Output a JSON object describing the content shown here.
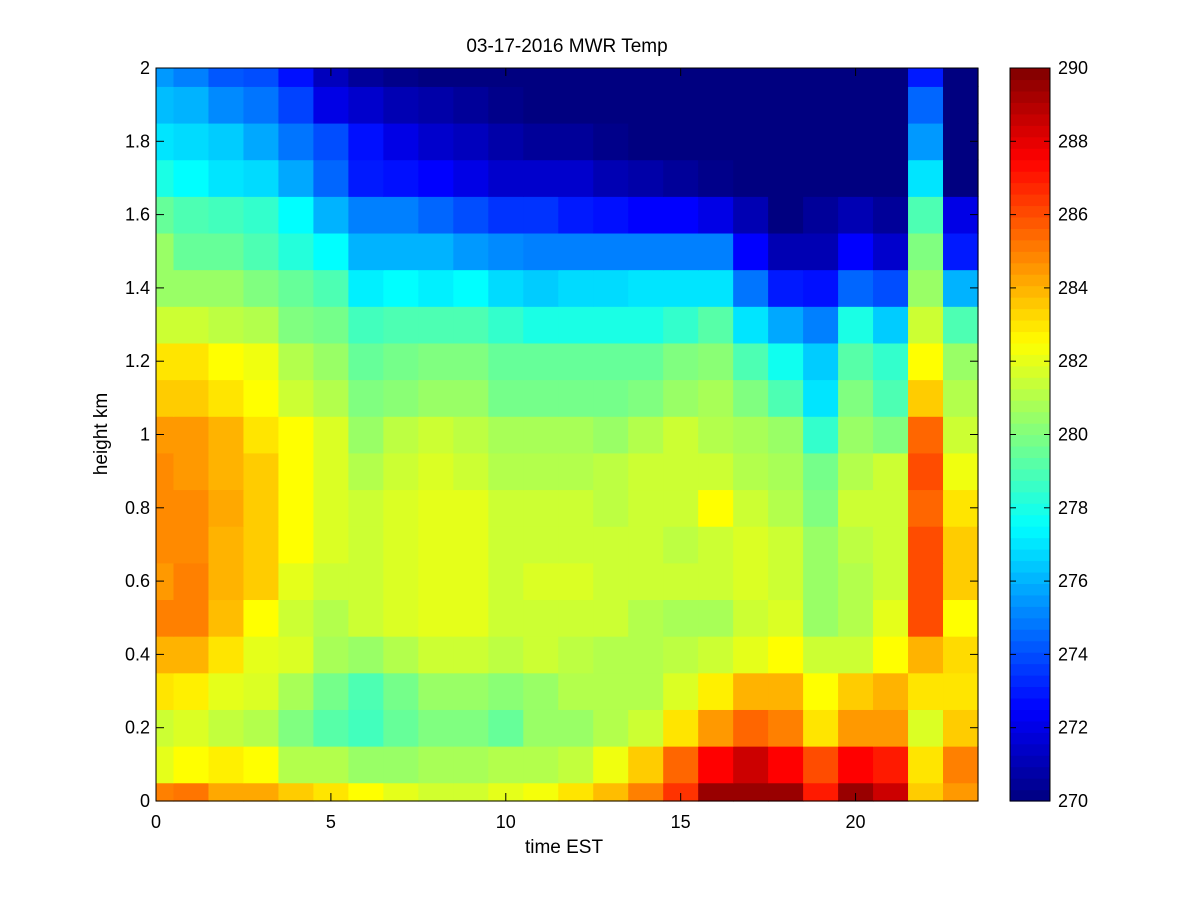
{
  "chart_data": {
    "type": "heatmap",
    "title": "03-17-2016 MWR Temp",
    "xlabel": "time EST",
    "ylabel": "height km",
    "xlim": [
      0,
      23.5
    ],
    "ylim": [
      0,
      2
    ],
    "clim": [
      270,
      290
    ],
    "colormap": "jet",
    "x_ticks": [
      0,
      5,
      10,
      15,
      20
    ],
    "y_ticks": [
      0,
      0.2,
      0.4,
      0.6,
      0.8,
      1,
      1.2,
      1.4,
      1.6,
      1.8,
      2
    ],
    "colorbar_ticks": [
      270,
      272,
      274,
      276,
      278,
      280,
      282,
      284,
      286,
      288,
      290
    ],
    "x_edges": [
      0,
      0.5,
      1.5,
      2.5,
      3.5,
      4.5,
      5.5,
      6.5,
      7.5,
      8.5,
      9.5,
      10.5,
      11.5,
      12.5,
      13.5,
      14.5,
      15.5,
      16.5,
      17.5,
      18.5,
      19.5,
      20.5,
      21.5,
      22.5,
      23.5
    ],
    "y_edges": [
      0,
      0.05,
      0.15,
      0.25,
      0.35,
      0.45,
      0.55,
      0.65,
      0.75,
      0.85,
      0.95,
      1.05,
      1.15,
      1.25,
      1.35,
      1.45,
      1.55,
      1.65,
      1.75,
      1.85,
      1.95,
      2.0
    ],
    "values": [
      [
        285.0,
        285.2,
        284.2,
        284.2,
        283.5,
        283.0,
        282.5,
        282.0,
        281.6,
        281.6,
        282.0,
        282.3,
        283.0,
        283.8,
        285.0,
        286.5,
        289.5,
        289.5,
        289.5,
        287.0,
        289.5,
        288.5,
        283.5,
        284.5
      ],
      [
        282.0,
        282.5,
        282.8,
        282.5,
        281.0,
        281.0,
        280.5,
        280.5,
        280.8,
        280.8,
        281.0,
        281.0,
        281.3,
        282.2,
        283.5,
        285.5,
        287.5,
        288.5,
        287.5,
        286.0,
        287.5,
        287.0,
        283.0,
        285.0
      ],
      [
        281.5,
        281.8,
        281.3,
        281.0,
        280.0,
        279.2,
        278.8,
        279.5,
        280.0,
        280.0,
        279.5,
        280.5,
        280.5,
        281.0,
        281.5,
        283.0,
        284.5,
        285.5,
        285.0,
        283.0,
        284.5,
        284.5,
        281.8,
        283.5
      ],
      [
        283.0,
        282.8,
        282.0,
        281.8,
        280.8,
        279.8,
        279.0,
        279.8,
        280.5,
        280.5,
        280.2,
        280.5,
        281.0,
        281.0,
        281.0,
        281.8,
        282.8,
        284.0,
        284.0,
        282.5,
        283.5,
        284.0,
        283.0,
        283.0
      ],
      [
        284.0,
        284.0,
        283.0,
        282.0,
        281.8,
        280.8,
        280.5,
        281.0,
        281.5,
        281.5,
        281.2,
        281.5,
        281.2,
        281.0,
        281.0,
        281.2,
        281.5,
        282.0,
        282.5,
        281.5,
        281.5,
        282.5,
        284.0,
        283.2
      ],
      [
        285.0,
        285.0,
        283.8,
        282.5,
        281.5,
        281.0,
        281.5,
        281.8,
        282.0,
        282.0,
        281.5,
        281.5,
        281.5,
        281.5,
        281.0,
        280.8,
        280.8,
        281.5,
        281.8,
        280.5,
        281.0,
        282.0,
        286.0,
        282.5
      ],
      [
        284.5,
        285.0,
        284.0,
        283.5,
        282.0,
        281.5,
        281.5,
        281.8,
        282.0,
        282.0,
        281.5,
        281.8,
        281.8,
        281.5,
        281.5,
        281.5,
        281.5,
        281.8,
        281.5,
        280.5,
        281.0,
        281.5,
        286.0,
        283.5
      ],
      [
        284.8,
        284.8,
        284.0,
        283.5,
        282.5,
        281.8,
        281.5,
        281.8,
        282.0,
        282.0,
        281.5,
        281.5,
        281.5,
        281.5,
        281.5,
        281.2,
        281.5,
        281.8,
        281.5,
        280.5,
        281.2,
        281.5,
        286.0,
        283.5
      ],
      [
        284.8,
        284.8,
        284.2,
        283.5,
        282.5,
        281.8,
        281.5,
        281.8,
        282.0,
        282.0,
        281.5,
        281.5,
        281.5,
        281.2,
        281.5,
        281.5,
        282.5,
        281.5,
        281.0,
        280.0,
        281.5,
        281.5,
        285.5,
        283.0
      ],
      [
        284.8,
        284.5,
        284.0,
        283.5,
        282.5,
        281.8,
        281.0,
        281.5,
        281.8,
        281.5,
        281.0,
        281.0,
        281.0,
        281.2,
        281.5,
        281.5,
        281.5,
        281.0,
        280.8,
        279.8,
        281.0,
        281.5,
        286.0,
        282.2
      ],
      [
        284.5,
        284.5,
        284.0,
        283.0,
        282.5,
        281.8,
        280.5,
        281.2,
        281.5,
        281.2,
        280.8,
        280.8,
        280.8,
        280.5,
        281.0,
        281.5,
        281.0,
        280.8,
        280.5,
        278.5,
        280.5,
        280.0,
        285.5,
        281.5
      ],
      [
        283.5,
        283.5,
        283.0,
        282.5,
        281.5,
        281.0,
        280.0,
        280.2,
        280.5,
        280.5,
        279.8,
        279.8,
        279.8,
        279.8,
        280.0,
        280.5,
        280.8,
        280.0,
        279.0,
        277.0,
        280.0,
        279.0,
        283.5,
        281.0
      ],
      [
        283.0,
        283.0,
        282.5,
        282.2,
        281.0,
        280.5,
        279.5,
        279.8,
        280.0,
        280.0,
        279.5,
        279.5,
        279.5,
        279.5,
        279.5,
        280.0,
        280.2,
        279.0,
        277.8,
        276.5,
        279.2,
        278.5,
        282.5,
        280.5
      ],
      [
        281.5,
        281.5,
        281.2,
        281.0,
        280.0,
        279.8,
        278.8,
        279.0,
        279.0,
        279.0,
        278.5,
        278.0,
        278.0,
        278.0,
        278.0,
        278.5,
        279.2,
        277.0,
        275.8,
        275.0,
        278.0,
        276.5,
        281.5,
        279.0
      ],
      [
        280.5,
        280.5,
        280.5,
        280.0,
        279.5,
        279.0,
        277.2,
        277.5,
        277.2,
        277.5,
        276.8,
        276.5,
        276.8,
        276.8,
        277.0,
        277.0,
        277.0,
        274.8,
        273.0,
        272.8,
        274.5,
        274.0,
        280.5,
        276.0
      ],
      [
        280.5,
        279.5,
        279.5,
        279.0,
        278.2,
        277.5,
        276.0,
        276.0,
        276.0,
        275.5,
        275.2,
        275.0,
        275.0,
        275.0,
        275.0,
        275.0,
        275.0,
        272.5,
        271.0,
        271.0,
        272.5,
        271.5,
        280.0,
        273.0
      ],
      [
        279.5,
        279.0,
        278.8,
        278.5,
        277.5,
        276.0,
        275.0,
        275.0,
        274.5,
        274.0,
        273.5,
        273.5,
        273.0,
        272.8,
        272.5,
        272.5,
        272.0,
        271.0,
        270.0,
        270.5,
        271.0,
        270.5,
        279.0,
        272.0
      ],
      [
        278.0,
        277.5,
        277.0,
        276.8,
        275.8,
        274.5,
        273.0,
        272.8,
        272.5,
        272.0,
        271.5,
        271.5,
        271.5,
        271.0,
        270.8,
        270.5,
        270.2,
        270.0,
        270.0,
        270.0,
        270.0,
        270.0,
        277.0,
        270.0
      ],
      [
        277.0,
        276.8,
        276.5,
        275.8,
        274.8,
        274.0,
        272.8,
        272.0,
        271.5,
        271.2,
        270.8,
        270.5,
        270.5,
        270.2,
        270.0,
        270.0,
        270.0,
        270.0,
        270.0,
        270.0,
        270.0,
        270.0,
        275.5,
        270.0
      ],
      [
        276.2,
        276.0,
        275.2,
        274.8,
        273.8,
        272.0,
        271.5,
        271.0,
        270.8,
        270.5,
        270.2,
        270.0,
        270.0,
        270.0,
        270.0,
        270.0,
        270.0,
        270.0,
        270.0,
        270.0,
        270.0,
        270.0,
        274.5,
        270.0
      ],
      [
        275.5,
        275.0,
        274.2,
        274.0,
        272.8,
        271.2,
        270.5,
        270.2,
        270.0,
        270.0,
        270.0,
        270.0,
        270.0,
        270.0,
        270.0,
        270.0,
        270.0,
        270.0,
        270.0,
        270.0,
        270.0,
        270.0,
        273.0,
        270.0
      ]
    ]
  }
}
